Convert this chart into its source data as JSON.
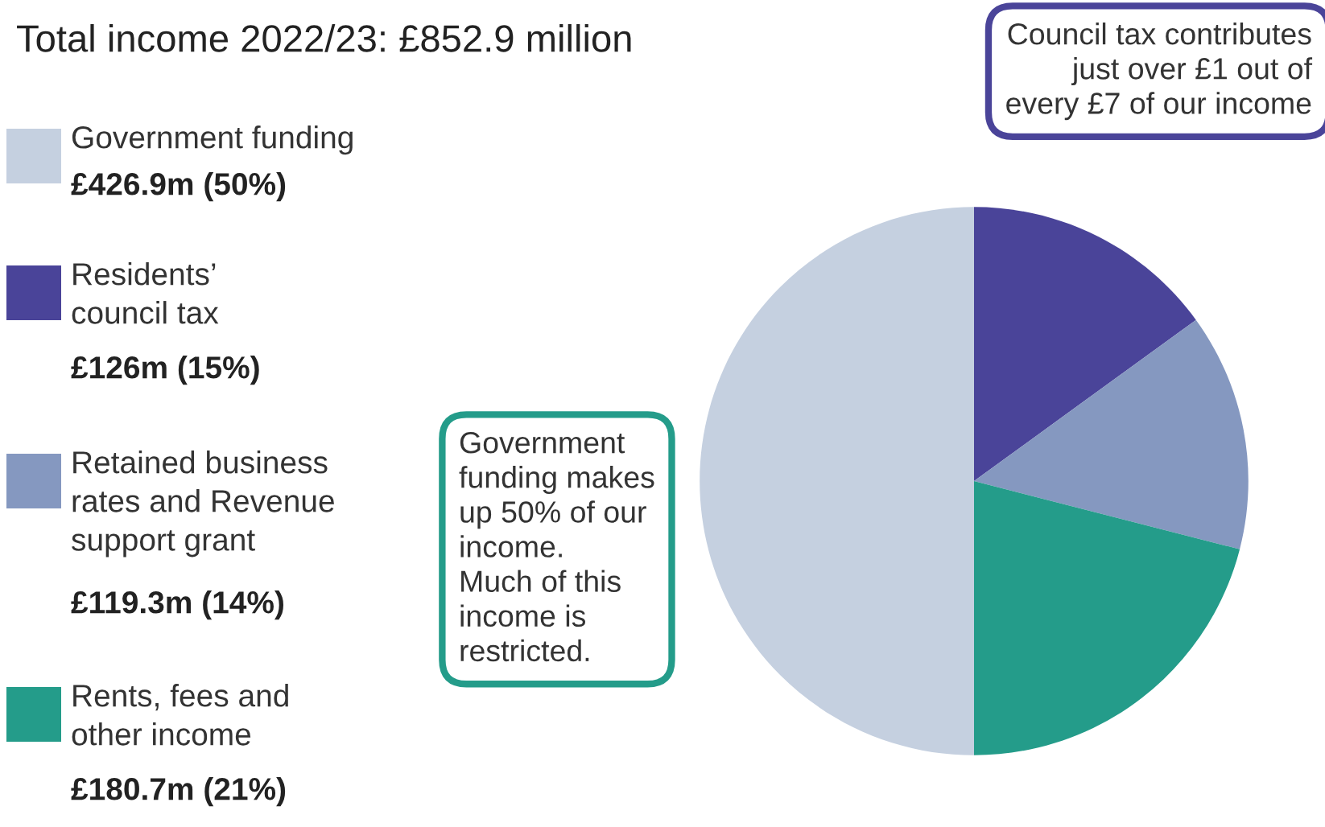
{
  "chart_data": {
    "type": "pie",
    "title": "Total income 2022/23: £852.9 million",
    "categories": [
      "Government funding\n£426.9m (50%)",
      "Residents’\ncouncil tax\n£126m (15%)",
      "Retained business\nrates and Revenue\nsupport grant\n£119.3m (14%)",
      "Rents, fees and\nother income\n£180.7m (21%)"
    ],
    "values": [
      50,
      15,
      14,
      21
    ],
    "colors": [
      "#c5d0e0",
      "#4a4499",
      "#8598c0",
      "#249c8a"
    ],
    "legend": "left",
    "annotations": [
      "Council tax contributes\njust over £1 out of\nevery £7 of our income",
      "Government\nfunding makes\nup 50% of our\nincome.\nMuch of this\nincome is\nrestricted."
    ]
  }
}
